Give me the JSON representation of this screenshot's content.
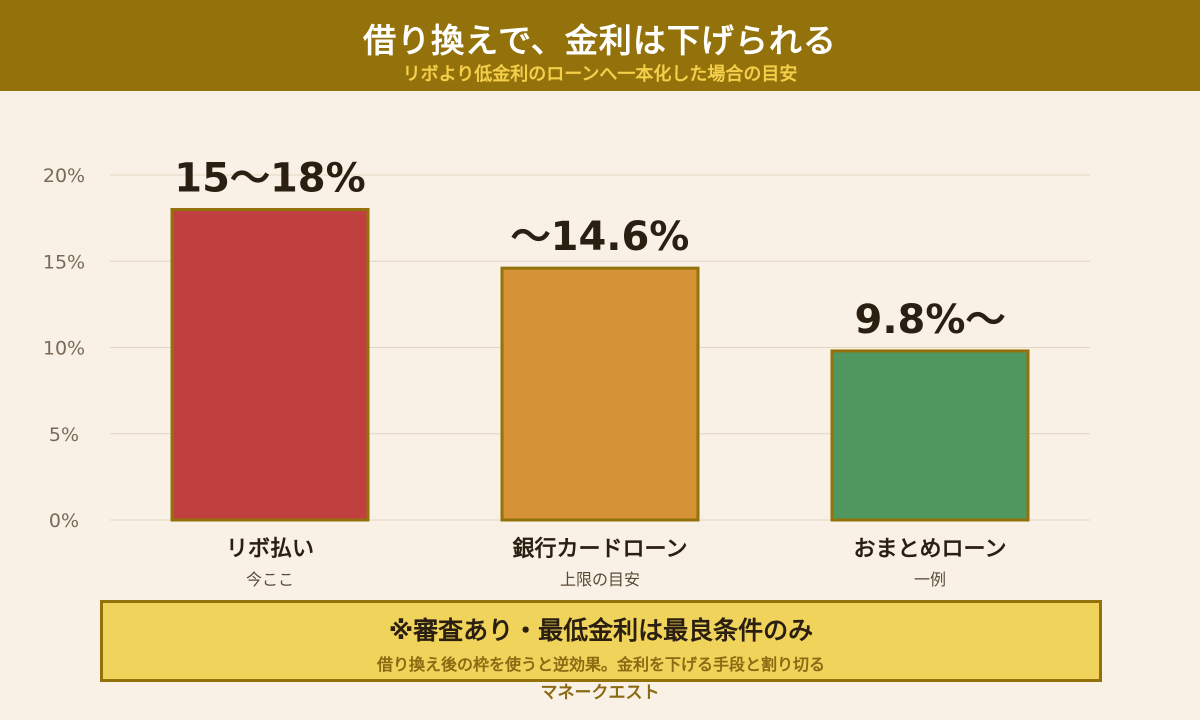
{
  "header": {
    "title": "借り換えで、金利は下げられる",
    "subtitle": "リボより低金利のローンへ一本化した場合の目安"
  },
  "chart_data": {
    "type": "bar",
    "categories": [
      "リボ払い",
      "銀行カードローン",
      "おまとめローン"
    ],
    "category_notes": [
      "今ここ",
      "上限の目安",
      "一例"
    ],
    "values": [
      18,
      14.6,
      9.8
    ],
    "value_labels": [
      "15〜18%",
      "〜14.6%",
      "9.8%〜"
    ],
    "bar_colors": [
      "#c0403f",
      "#d69236",
      "#4f965f"
    ],
    "bar_border_color": "#94720b",
    "y_ticks": [
      0,
      5,
      10,
      15,
      20
    ],
    "y_tick_labels": [
      "0%",
      "5%",
      "10%",
      "15%",
      "20%"
    ],
    "ylim": [
      0,
      20
    ],
    "grid": true
  },
  "note": {
    "title": "※審査あり・最低金利は最良条件のみ",
    "subtitle": "借り換え後の枠を使うと逆効果。金利を下げる手段と割り切る"
  },
  "credit": "マネークエスト"
}
